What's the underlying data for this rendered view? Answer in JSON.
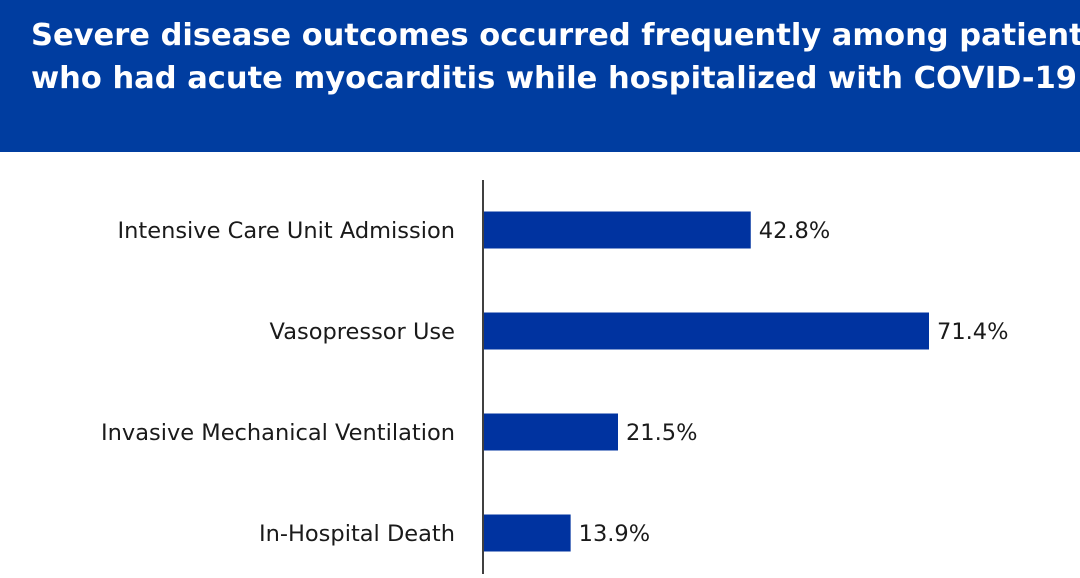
{
  "header": {
    "title_line1": "Severe disease outcomes occurred frequently among patients",
    "title_line2": "who had acute myocarditis while hospitalized with COVID-19."
  },
  "colors": {
    "header_bg": "#003da0",
    "bar": "#0033a0",
    "axis": "#000000",
    "text": "#1a1a1a"
  },
  "chart_data": {
    "type": "bar",
    "orientation": "horizontal",
    "categories": [
      "Intensive Care Unit Admission",
      "Vasopressor Use",
      "Invasive Mechanical Ventilation",
      "In-Hospital Death"
    ],
    "values": [
      42.8,
      71.4,
      21.5,
      13.9
    ],
    "value_labels": [
      "42.8%",
      "71.4%",
      "21.5%",
      "13.9%"
    ],
    "xlim": [
      0,
      71.4
    ],
    "grid": false,
    "legend": "none"
  }
}
